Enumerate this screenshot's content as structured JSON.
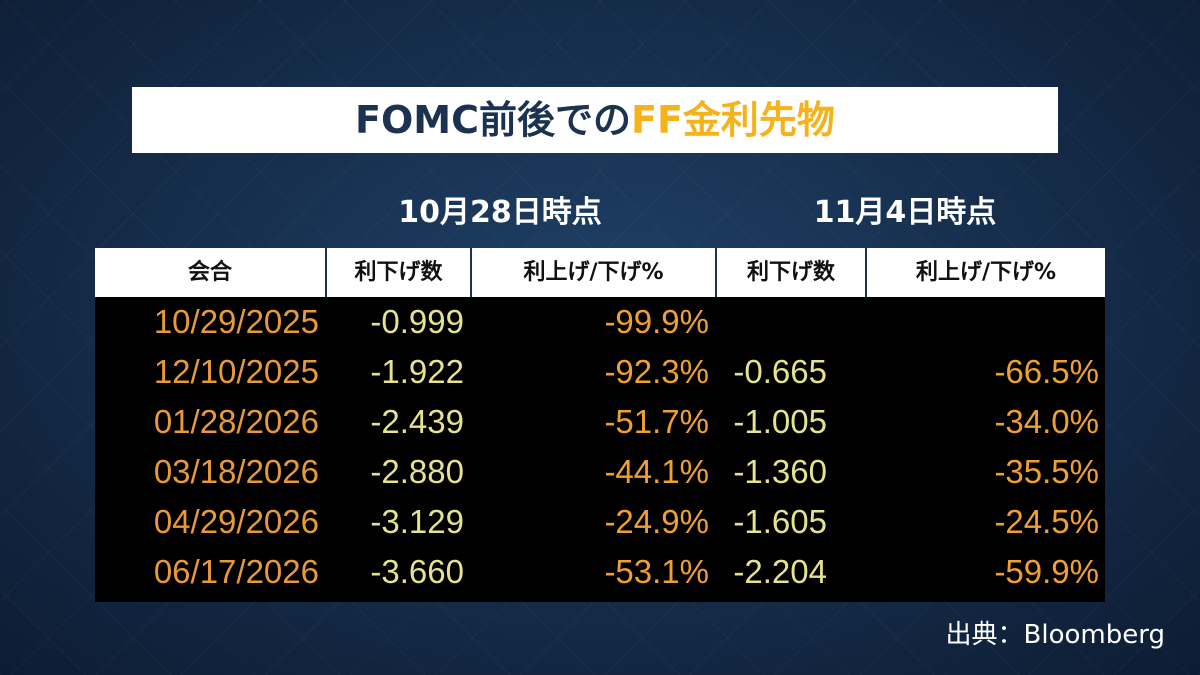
{
  "header": {
    "title_dark": "FOMC前後での",
    "title_accent": "FF金利先物"
  },
  "groups": [
    "10月28日時点",
    "11月4日時点"
  ],
  "table": {
    "columns": [
      "会合",
      "利下げ数",
      "利上げ/下げ%",
      "利下げ数",
      "利上げ/下げ%"
    ],
    "rows": [
      [
        "10/29/2025",
        "-0.999",
        "-99.9%",
        null,
        null
      ],
      [
        "12/10/2025",
        "-1.922",
        "-92.3%",
        "-0.665",
        "-66.5%"
      ],
      [
        "01/28/2026",
        "-2.439",
        "-51.7%",
        "-1.005",
        "-34.0%"
      ],
      [
        "03/18/2026",
        "-2.880",
        "-44.1%",
        "-1.360",
        "-35.5%"
      ],
      [
        "04/29/2026",
        "-3.129",
        "-24.9%",
        "-1.605",
        "-24.5%"
      ],
      [
        "06/17/2026",
        "-3.660",
        "-53.1%",
        "-2.204",
        "-59.9%"
      ]
    ]
  },
  "source": "出典：Bloomberg"
}
